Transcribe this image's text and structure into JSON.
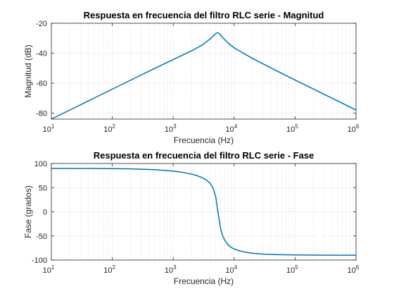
{
  "colors": {
    "line": "#0072BD",
    "axes": "#262626",
    "grid": "#c9c9c9"
  },
  "chart_data": [
    {
      "type": "line",
      "title": "Respuesta en frecuencia del filtro RLC serie - Magnitud",
      "xlabel": "Frecuencia (Hz)",
      "ylabel": "Magnitud (dB)",
      "xscale": "log",
      "xlim": [
        10,
        1000000
      ],
      "ylim": [
        -84,
        -20
      ],
      "xticks": [
        10,
        100,
        1000,
        10000,
        100000,
        1000000
      ],
      "xtick_labels": [
        {
          "base": "10",
          "exp": "1"
        },
        {
          "base": "10",
          "exp": "2"
        },
        {
          "base": "10",
          "exp": "3"
        },
        {
          "base": "10",
          "exp": "4"
        },
        {
          "base": "10",
          "exp": "5"
        },
        {
          "base": "10",
          "exp": "6"
        }
      ],
      "yticks": [
        -80,
        -60,
        -40,
        -20
      ],
      "ytick_labels": [
        "-80",
        "-60",
        "-40",
        "-20"
      ],
      "grid": true,
      "minor_grid": true,
      "series": [
        {
          "x": [
            10,
            20,
            50,
            100,
            200,
            500,
            1000,
            2000,
            3000,
            4000,
            4500,
            5000,
            5300,
            5600,
            6000,
            6500,
            7000,
            8000,
            10000,
            20000,
            50000,
            100000,
            200000,
            500000,
            1000000
          ],
          "y": [
            -84.0,
            -78.0,
            -70.0,
            -64.0,
            -58.0,
            -50.1,
            -44.2,
            -38.4,
            -34.5,
            -30.6,
            -28.6,
            -26.9,
            -26.3,
            -26.7,
            -28.0,
            -29.6,
            -31.0,
            -33.3,
            -36.4,
            -43.5,
            -51.8,
            -57.9,
            -63.9,
            -71.9,
            -77.9
          ]
        }
      ]
    },
    {
      "type": "line",
      "title": "Respuesta en frecuencia del filtro RLC serie - Fase",
      "xlabel": "Frecuencia (Hz)",
      "ylabel": "Fase (grados)",
      "xscale": "log",
      "xlim": [
        10,
        1000000
      ],
      "ylim": [
        -100,
        100
      ],
      "xticks": [
        10,
        100,
        1000,
        10000,
        100000,
        1000000
      ],
      "xtick_labels": [
        {
          "base": "10",
          "exp": "1"
        },
        {
          "base": "10",
          "exp": "2"
        },
        {
          "base": "10",
          "exp": "3"
        },
        {
          "base": "10",
          "exp": "4"
        },
        {
          "base": "10",
          "exp": "5"
        },
        {
          "base": "10",
          "exp": "6"
        }
      ],
      "yticks": [
        -100,
        -50,
        0,
        50,
        100
      ],
      "ytick_labels": [
        "-100",
        "-50",
        "0",
        "50",
        "100"
      ],
      "grid": true,
      "minor_grid": true,
      "series": [
        {
          "x": [
            10,
            20,
            50,
            100,
            200,
            500,
            1000,
            1500,
            2000,
            2500,
            3000,
            3500,
            4000,
            4500,
            5000,
            5500,
            6000,
            6500,
            7000,
            8000,
            9000,
            10000,
            12000,
            15000,
            20000,
            30000,
            50000,
            100000,
            200000,
            500000,
            1000000
          ],
          "y": [
            89.9,
            89.8,
            89.7,
            89.4,
            88.9,
            87.2,
            84.3,
            81.3,
            78.0,
            74.6,
            70.6,
            65.8,
            59.5,
            49.7,
            30.2,
            -6.0,
            -35.0,
            -50.0,
            -59.0,
            -69.0,
            -74.0,
            -77.0,
            -80.5,
            -83.5,
            -85.9,
            -87.6,
            -88.7,
            -89.4,
            -89.7,
            -89.9,
            -89.9
          ]
        }
      ]
    }
  ]
}
